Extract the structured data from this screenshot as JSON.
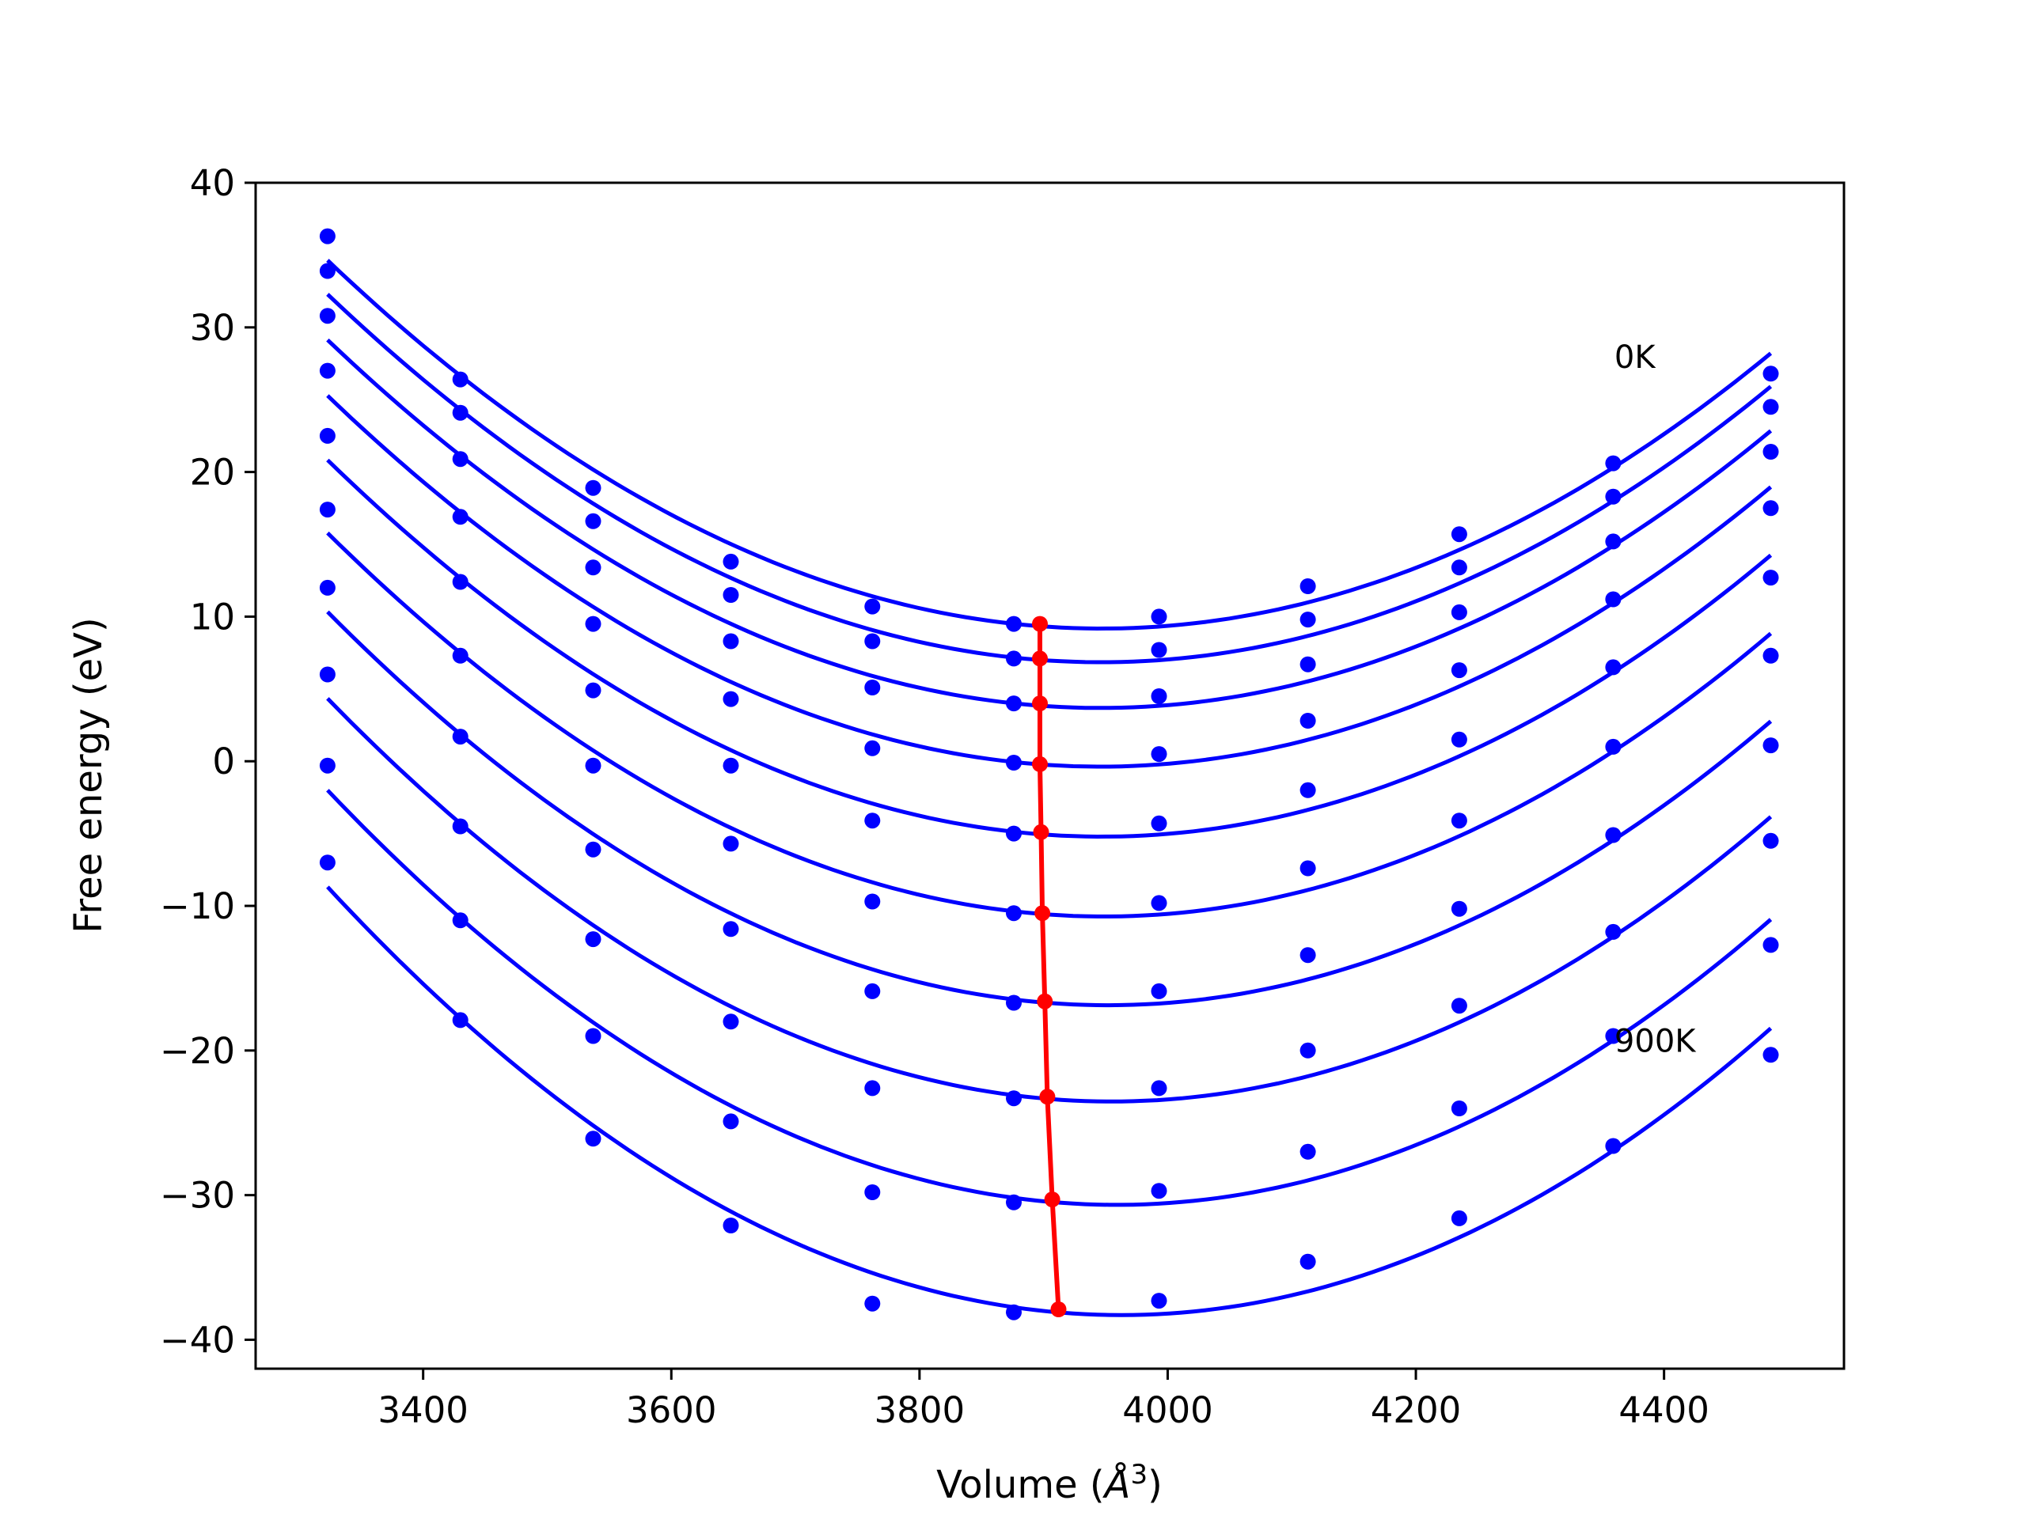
{
  "chart_data": {
    "type": "line",
    "title": "",
    "xlabel": "Volume (Å3)",
    "xlabel_base": "Volume (",
    "xlabel_symbol": "Å",
    "xlabel_sup": "3",
    "xlabel_close": ")",
    "ylabel": "Free energy (eV)",
    "xlim": [
      3265,
      4545
    ],
    "ylim": [
      -42,
      40
    ],
    "xticks": [
      3400,
      3600,
      3800,
      4000,
      4200,
      4400
    ],
    "yticks": [
      -40,
      -30,
      -20,
      -10,
      0,
      10,
      20,
      30,
      40
    ],
    "xtick_labels": [
      "3400",
      "3600",
      "3800",
      "4000",
      "4200",
      "4400"
    ],
    "ytick_labels": [
      "−40",
      "−30",
      "−20",
      "−10",
      "0",
      "10",
      "20",
      "30",
      "40"
    ],
    "grid": false,
    "volumes": [
      3323,
      3430,
      3537,
      3648,
      3762,
      3876,
      3993,
      4113,
      4235,
      4359,
      4486
    ],
    "series": [
      {
        "values": [
          36.3,
          26.4,
          18.9,
          13.8,
          10.7,
          9.5,
          10.0,
          12.1,
          15.7,
          20.6,
          26.8
        ],
        "fit_min": [
          3897,
          9.5
        ]
      },
      {
        "values": [
          33.9,
          24.1,
          16.6,
          11.5,
          8.3,
          7.1,
          7.7,
          9.8,
          13.4,
          18.3,
          24.5
        ],
        "fit_min": [
          3897,
          7.1
        ]
      },
      {
        "values": [
          30.8,
          20.9,
          13.4,
          8.3,
          5.1,
          4.0,
          4.5,
          6.7,
          10.3,
          15.2,
          21.4
        ],
        "fit_min": [
          3897,
          4.0
        ]
      },
      {
        "values": [
          27.0,
          16.9,
          9.5,
          4.3,
          0.9,
          -0.1,
          0.5,
          2.8,
          6.3,
          11.2,
          17.5
        ],
        "fit_min": [
          3897,
          -0.2
        ]
      },
      {
        "values": [
          22.5,
          12.4,
          4.9,
          -0.3,
          -4.1,
          -5.0,
          -4.3,
          -2.0,
          1.5,
          6.5,
          12.7
        ],
        "fit_min": [
          3898,
          -4.9
        ]
      },
      {
        "values": [
          17.4,
          7.3,
          -0.3,
          -5.7,
          -9.7,
          -10.5,
          -9.8,
          -7.4,
          -4.1,
          1.0,
          7.3
        ],
        "fit_min": [
          3899,
          -10.5
        ]
      },
      {
        "values": [
          12.0,
          1.7,
          -6.1,
          -11.6,
          -15.9,
          -16.7,
          -15.9,
          -13.4,
          -10.2,
          -5.1,
          1.1
        ],
        "fit_min": [
          3901,
          -16.6
        ]
      },
      {
        "values": [
          6.0,
          -4.5,
          -12.3,
          -18.0,
          -22.6,
          -23.3,
          -22.6,
          -20.0,
          -16.9,
          -11.8,
          -5.5
        ],
        "fit_min": [
          3903,
          -23.2
        ]
      },
      {
        "values": [
          -0.3,
          -11.0,
          -19.0,
          -24.9,
          -29.8,
          -30.5,
          -29.7,
          -27.0,
          -24.0,
          -19.0,
          -12.7
        ],
        "fit_min": [
          3907,
          -30.3
        ]
      },
      {
        "values": [
          -7.0,
          -17.9,
          -26.1,
          -32.1,
          -37.5,
          -38.1,
          -37.3,
          -34.6,
          -31.6,
          -26.6,
          -20.3
        ],
        "fit_min": [
          3912,
          -37.9
        ]
      }
    ],
    "annotations": [
      {
        "text": "0K",
        "x": 4360,
        "y": 27.2
      },
      {
        "text": "900K",
        "x": 4360,
        "y": -20.1
      }
    ],
    "colors": {
      "points": "#0000ff",
      "fits": "#0000ff",
      "minima": "#ff0000"
    }
  }
}
